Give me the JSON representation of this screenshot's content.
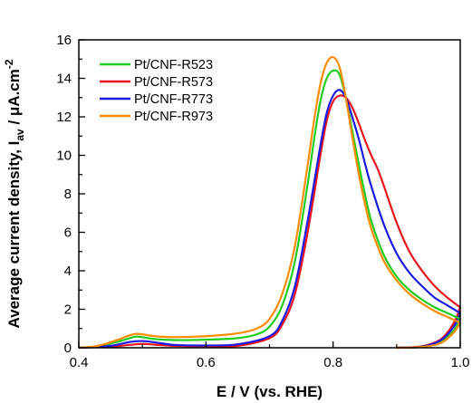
{
  "chart_data": {
    "type": "line",
    "xlabel": "E / V (vs. RHE)",
    "ylabel_main": "Average current density, I",
    "ylabel_sub": "av",
    "ylabel_unit": " / μA.cm",
    "ylabel_sup": "-2",
    "xlim": [
      0.4,
      1.0
    ],
    "ylim": [
      0,
      16
    ],
    "xticks": [
      "0.4",
      "0.6",
      "0.8",
      "1.0"
    ],
    "yticks": [
      "0",
      "2",
      "4",
      "6",
      "8",
      "10",
      "12",
      "14",
      "16"
    ],
    "legend_position": "top-left",
    "grid": false,
    "series": [
      {
        "name": "Pt/CNF-R523",
        "color": "#1fcc1f",
        "x": [
          0.4,
          0.43,
          0.46,
          0.48,
          0.49,
          0.5,
          0.52,
          0.55,
          0.6,
          0.65,
          0.68,
          0.7,
          0.72,
          0.74,
          0.76,
          0.77,
          0.78,
          0.79,
          0.8,
          0.81,
          0.82,
          0.83,
          0.84,
          0.85,
          0.86,
          0.88,
          0.9,
          0.92,
          0.94,
          0.96,
          0.98,
          1.0
        ],
        "y": [
          0,
          0.08,
          0.3,
          0.5,
          0.58,
          0.55,
          0.45,
          0.4,
          0.42,
          0.5,
          0.7,
          1.1,
          2.2,
          4.5,
          8.5,
          10.8,
          12.8,
          14.0,
          14.4,
          14.2,
          13.0,
          11.3,
          9.6,
          8.0,
          6.6,
          4.8,
          3.7,
          3.0,
          2.5,
          2.1,
          1.8,
          1.5
        ]
      },
      {
        "name": "Pt/CNF-R573",
        "color": "#e8141b",
        "x": [
          0.4,
          0.45,
          0.48,
          0.5,
          0.52,
          0.55,
          0.6,
          0.65,
          0.7,
          0.72,
          0.74,
          0.76,
          0.78,
          0.79,
          0.8,
          0.81,
          0.82,
          0.83,
          0.84,
          0.85,
          0.86,
          0.87,
          0.88,
          0.9,
          0.92,
          0.94,
          0.96,
          0.98,
          1.0
        ],
        "y": [
          0,
          0.05,
          0.15,
          0.2,
          0.16,
          0.1,
          0.08,
          0.1,
          0.5,
          1.2,
          2.8,
          6.0,
          10.0,
          11.8,
          12.8,
          13.1,
          13.0,
          12.5,
          11.7,
          10.8,
          10.0,
          9.3,
          8.4,
          6.5,
          5.0,
          4.0,
          3.2,
          2.6,
          2.1
        ]
      },
      {
        "name": "Pt/CNF-R773",
        "color": "#1a1ae0",
        "x": [
          0.4,
          0.45,
          0.48,
          0.5,
          0.52,
          0.55,
          0.6,
          0.65,
          0.7,
          0.72,
          0.74,
          0.76,
          0.78,
          0.79,
          0.8,
          0.81,
          0.82,
          0.83,
          0.84,
          0.85,
          0.86,
          0.88,
          0.9,
          0.92,
          0.94,
          0.96,
          0.98,
          1.0
        ],
        "y": [
          0,
          0.1,
          0.3,
          0.35,
          0.28,
          0.15,
          0.12,
          0.18,
          0.6,
          1.4,
          3.2,
          6.6,
          10.5,
          12.2,
          13.1,
          13.4,
          13.0,
          12.0,
          10.9,
          9.6,
          8.4,
          6.4,
          4.9,
          3.9,
          3.2,
          2.6,
          2.2,
          1.8
        ]
      },
      {
        "name": "Pt/CNF-R973",
        "color": "#ff8c00",
        "x": [
          0.4,
          0.43,
          0.46,
          0.48,
          0.49,
          0.5,
          0.52,
          0.55,
          0.6,
          0.65,
          0.68,
          0.7,
          0.72,
          0.74,
          0.76,
          0.77,
          0.78,
          0.79,
          0.8,
          0.81,
          0.82,
          0.83,
          0.84,
          0.85,
          0.86,
          0.88,
          0.9,
          0.92,
          0.94,
          0.96,
          0.98,
          1.0
        ],
        "y": [
          0,
          0.1,
          0.4,
          0.65,
          0.72,
          0.7,
          0.6,
          0.55,
          0.6,
          0.75,
          1.0,
          1.5,
          2.8,
          5.3,
          9.5,
          11.8,
          13.7,
          14.8,
          15.1,
          14.6,
          13.0,
          11.0,
          9.1,
          7.5,
          6.2,
          4.5,
          3.5,
          2.8,
          2.3,
          1.9,
          1.6,
          1.3
        ]
      }
    ],
    "reverse_scan": [
      {
        "color": "#1fcc1f",
        "x": [
          0.9,
          0.94,
          0.97,
          0.99,
          1.0
        ],
        "y": [
          0,
          0.05,
          0.3,
          0.9,
          1.5
        ]
      },
      {
        "color": "#e8141b",
        "x": [
          0.9,
          0.94,
          0.97,
          0.99,
          1.0
        ],
        "y": [
          0,
          0.08,
          0.45,
          1.3,
          2.1
        ]
      },
      {
        "color": "#1a1ae0",
        "x": [
          0.9,
          0.94,
          0.97,
          0.99,
          1.0
        ],
        "y": [
          0,
          0.06,
          0.4,
          1.1,
          1.8
        ]
      },
      {
        "color": "#ff8c00",
        "x": [
          0.9,
          0.94,
          0.97,
          0.99,
          1.0
        ],
        "y": [
          0,
          0.04,
          0.25,
          0.8,
          1.3
        ]
      }
    ]
  }
}
